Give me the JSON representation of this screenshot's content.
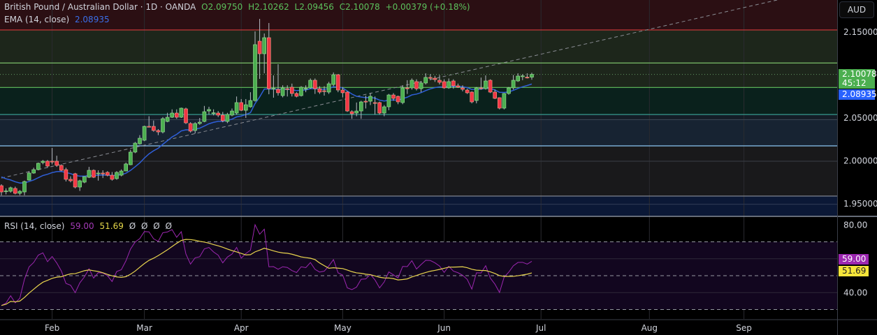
{
  "header": {
    "symbol": "British Pound / Australian Dollar · 1D · OANDA",
    "open": "O2.09750",
    "high": "H2.10262",
    "low": "L2.09456",
    "close": "C2.10078",
    "change": "+0.00379 (+0.18%)",
    "ema_label": "EMA (14, close)",
    "ema_value": "2.08935"
  },
  "rsi_header": {
    "label": "RSI (14, close)",
    "rsi_value": "59.00",
    "ma_value": "51.69",
    "extras": [
      "Ø",
      "Ø",
      "Ø",
      "Ø"
    ]
  },
  "price_axis": {
    "currency_button": "AUD",
    "last_price": "2.10078",
    "countdown": "45:12",
    "ema_tag": "2.08935",
    "rsi_tag": "59.00",
    "rsi_ma_tag": "51.69"
  },
  "colors": {
    "up": "#4caf50",
    "down": "#f23645",
    "ema": "#2f5fd8",
    "rsi": "#9c27b0",
    "rsi_ma": "#e8d44d",
    "last_price": "#4caf50",
    "ema_tag": "#2962ff"
  },
  "chart_data": [
    {
      "type": "candlestick",
      "symbol": "GBP/AUD",
      "timeframe": "1D",
      "ylim": [
        1.945,
        2.17
      ],
      "yticks": [
        "2.15000",
        "2.05000",
        "2.00000",
        "1.95000"
      ],
      "ytick_values": [
        2.15,
        2.05,
        2.0,
        1.95
      ],
      "xticks": [
        {
          "label": "Feb",
          "bar": 11
        },
        {
          "label": "Mar",
          "bar": 31
        },
        {
          "label": "Apr",
          "bar": 52
        },
        {
          "label": "May",
          "bar": 74
        },
        {
          "label": "Jun",
          "bar": 96
        },
        {
          "label": "Jul",
          "bar": 117
        },
        {
          "label": "Aug",
          "bar": 140.5
        },
        {
          "label": "Sep",
          "bar": 161
        }
      ],
      "ema_period": 14,
      "levels": [
        {
          "price": 2.1525,
          "color": "#d23b3b"
        },
        {
          "price": 2.114,
          "color": "#7cc06a"
        },
        {
          "price": 2.10078,
          "color": "#5a8a5a",
          "dotted": true
        },
        {
          "price": 2.0855,
          "color": "#62c05e"
        },
        {
          "price": 2.054,
          "color": "#3aa89a"
        },
        {
          "price": 2.048,
          "color": "#3a4652"
        },
        {
          "price": 2.0175,
          "color": "#8cc6f2"
        },
        {
          "price": 1.9996,
          "color": "#34383f"
        },
        {
          "price": 1.959,
          "color": "#8a8f99"
        },
        {
          "price": 1.9495,
          "color": "#2a3550"
        }
      ],
      "bands": [
        {
          "from": 2.1525,
          "to": 2.3,
          "color": "#2b0f13"
        },
        {
          "from": 2.0855,
          "to": 2.1525,
          "color": "#1d261b"
        },
        {
          "from": 2.054,
          "to": 2.0855,
          "color": "#0a211c"
        },
        {
          "from": 2.0175,
          "to": 2.048,
          "color": "#172332"
        },
        {
          "from": 2.048,
          "to": 2.054,
          "color": "#141d27"
        },
        {
          "from": 1.959,
          "to": 2.0175,
          "color": "#19191b"
        },
        {
          "from": 1.9,
          "to": 1.959,
          "color": "#0b1836"
        }
      ],
      "trendline": {
        "points": [
          [
            0,
            1.98
          ],
          [
            60,
            2.054
          ]
        ],
        "style": "dashed"
      },
      "ohlc": [
        [
          1.9711,
          1.9728,
          1.9598,
          1.9638
        ],
        [
          1.9646,
          1.968,
          1.961,
          1.965
        ],
        [
          1.9646,
          1.97,
          1.963,
          1.9687
        ],
        [
          1.9679,
          1.97,
          1.961,
          1.9622
        ],
        [
          1.9622,
          1.966,
          1.96,
          1.9646
        ],
        [
          1.9638,
          1.977,
          1.96,
          1.976
        ],
        [
          1.9776,
          1.988,
          1.977,
          1.9858
        ],
        [
          1.9858,
          1.992,
          1.985,
          1.9898
        ],
        [
          1.9898,
          1.998,
          1.989,
          1.9972
        ],
        [
          1.998,
          2.001,
          1.996,
          1.9996
        ],
        [
          1.9996,
          2.001,
          1.992,
          1.9939
        ],
        [
          1.9996,
          2.015,
          1.996,
          1.999
        ],
        [
          1.9996,
          2.006,
          1.993,
          1.9947
        ],
        [
          1.9947,
          1.996,
          1.988,
          1.989
        ],
        [
          1.9898,
          1.992,
          1.976,
          1.9785
        ],
        [
          1.9785,
          1.982,
          1.975,
          1.9768
        ],
        [
          1.985,
          1.986,
          1.968,
          1.9695
        ],
        [
          1.9695,
          1.978,
          1.965,
          1.9768
        ],
        [
          1.9752,
          1.982,
          1.974,
          1.9817
        ],
        [
          1.9809,
          1.993,
          1.98,
          1.989
        ],
        [
          1.989,
          1.99,
          1.98,
          1.9809
        ],
        [
          1.985,
          1.989,
          1.977,
          1.9858
        ],
        [
          1.9858,
          1.989,
          1.98,
          1.9855
        ],
        [
          1.9866,
          1.988,
          1.982,
          1.9833
        ],
        [
          1.9833,
          1.987,
          1.977,
          1.9785
        ],
        [
          1.9793,
          1.988,
          1.978,
          1.9866
        ],
        [
          1.9833,
          1.99,
          1.982,
          1.9882
        ],
        [
          1.9882,
          1.998,
          1.988,
          1.9964
        ],
        [
          1.9955,
          2.013,
          1.995,
          2.0102
        ],
        [
          2.0102,
          2.022,
          2.009,
          2.0207
        ],
        [
          2.0199,
          2.03,
          2.019,
          2.0264
        ],
        [
          2.024,
          2.041,
          2.023,
          2.0402
        ],
        [
          2.0402,
          2.052,
          2.039,
          2.04
        ],
        [
          2.0402,
          2.047,
          2.034,
          2.0354
        ],
        [
          2.0354,
          2.037,
          2.03,
          2.0337
        ],
        [
          2.0337,
          2.051,
          2.032,
          2.0492
        ],
        [
          2.0459,
          2.056,
          2.045,
          2.0508
        ],
        [
          2.0508,
          2.06,
          2.05,
          2.0557
        ],
        [
          2.0557,
          2.06,
          2.049,
          2.0508
        ],
        [
          2.0508,
          2.062,
          2.05,
          2.0614
        ],
        [
          2.0606,
          2.062,
          2.043,
          2.0443
        ],
        [
          2.0435,
          2.045,
          2.033,
          2.0346
        ],
        [
          2.0354,
          2.045,
          2.032,
          2.0435
        ],
        [
          2.0435,
          2.05,
          2.042,
          2.0451
        ],
        [
          2.0459,
          2.064,
          2.045,
          2.0573
        ],
        [
          2.0581,
          2.063,
          2.054,
          2.0598
        ],
        [
          2.0557,
          2.06,
          2.053,
          2.056
        ],
        [
          2.0557,
          2.058,
          2.051,
          2.0533
        ],
        [
          2.0533,
          2.057,
          2.045,
          2.0467
        ],
        [
          2.0459,
          2.056,
          2.044,
          2.0541
        ],
        [
          2.0533,
          2.061,
          2.052,
          2.0581
        ],
        [
          2.0557,
          2.075,
          2.054,
          2.0679
        ],
        [
          2.0679,
          2.072,
          2.058,
          2.0589
        ],
        [
          2.0589,
          2.072,
          2.05,
          2.0654
        ],
        [
          2.063,
          2.08,
          2.062,
          2.0703
        ],
        [
          2.0703,
          2.1508,
          2.069,
          2.1354
        ],
        [
          2.1394,
          2.1654,
          2.0955,
          2.1248
        ],
        [
          2.1248,
          2.1484,
          2.102,
          2.1435
        ],
        [
          2.1435,
          2.1606,
          2.0776,
          2.0841
        ],
        [
          2.0841,
          2.0996,
          2.0736,
          2.0845
        ],
        [
          2.0833,
          2.1126,
          2.076,
          2.0793
        ],
        [
          2.076,
          2.088,
          2.074,
          2.085
        ],
        [
          2.0841,
          2.088,
          2.075,
          2.0838
        ],
        [
          2.0858,
          2.09,
          2.075,
          2.0785
        ],
        [
          2.0785,
          2.08,
          2.074,
          2.0752
        ],
        [
          2.076,
          2.087,
          2.075,
          2.0858
        ],
        [
          2.0841,
          2.088,
          2.08,
          2.0845
        ],
        [
          2.085,
          2.096,
          2.084,
          2.0939
        ],
        [
          2.0939,
          2.096,
          2.078,
          2.0841
        ],
        [
          2.0841,
          2.087,
          2.078,
          2.0801
        ],
        [
          2.0817,
          2.087,
          2.076,
          2.0815
        ],
        [
          2.0801,
          2.092,
          2.078,
          2.0898
        ],
        [
          2.089,
          2.103,
          2.087,
          2.1004
        ],
        [
          2.1004,
          2.101,
          2.08,
          2.0825
        ],
        [
          2.0825,
          2.086,
          2.074,
          2.0793
        ],
        [
          2.0801,
          2.081,
          2.057,
          2.0581
        ],
        [
          2.0573,
          2.059,
          2.049,
          2.0549
        ],
        [
          2.0557,
          2.068,
          2.052,
          2.0581
        ],
        [
          2.0581,
          2.07,
          2.049,
          2.0687
        ],
        [
          2.0695,
          2.076,
          2.061,
          2.0692
        ],
        [
          2.0695,
          2.079,
          2.065,
          2.0752
        ],
        [
          2.0679,
          2.075,
          2.054,
          2.0677
        ],
        [
          2.0679,
          2.069,
          2.054,
          2.0557
        ],
        [
          2.0557,
          2.065,
          2.052,
          2.063
        ],
        [
          2.063,
          2.078,
          2.059,
          2.0768
        ],
        [
          2.0768,
          2.079,
          2.07,
          2.0728
        ],
        [
          2.0752,
          2.076,
          2.066,
          2.0687
        ],
        [
          2.0679,
          2.088,
          2.066,
          2.085
        ],
        [
          2.085,
          2.094,
          2.078,
          2.0848
        ],
        [
          2.085,
          2.096,
          2.083,
          2.0939
        ],
        [
          2.0923,
          2.095,
          2.082,
          2.0841
        ],
        [
          2.0841,
          2.093,
          2.08,
          2.0907
        ],
        [
          2.0907,
          2.102,
          2.089,
          2.0972
        ],
        [
          2.0972,
          2.101,
          2.094,
          2.097
        ],
        [
          2.0963,
          2.099,
          2.092,
          2.0947
        ],
        [
          2.0939,
          2.1,
          2.089,
          2.0915
        ],
        [
          2.0923,
          2.095,
          2.084,
          2.085
        ],
        [
          2.085,
          2.096,
          2.084,
          2.0923
        ],
        [
          2.0931,
          2.095,
          2.084,
          2.0874
        ],
        [
          2.0874,
          2.09,
          2.085,
          2.0858
        ],
        [
          2.085,
          2.088,
          2.081,
          2.0833
        ],
        [
          2.0825,
          2.084,
          2.078,
          2.0793
        ],
        [
          2.0801,
          2.081,
          2.067,
          2.0687
        ],
        [
          2.0703,
          2.086,
          2.067,
          2.085
        ],
        [
          2.085,
          2.097,
          2.083,
          2.0848
        ],
        [
          2.0841,
          2.0996,
          2.083,
          2.0931
        ],
        [
          2.0939,
          2.095,
          2.079,
          2.0801
        ],
        [
          2.0801,
          2.083,
          2.072,
          2.0728
        ],
        [
          2.0736,
          2.074,
          2.06,
          2.0614
        ],
        [
          2.0614,
          2.079,
          2.06,
          2.0785
        ],
        [
          2.0785,
          2.086,
          2.077,
          2.085
        ],
        [
          2.085,
          2.1,
          2.083,
          2.0939
        ],
        [
          2.0931,
          2.102,
          2.092,
          2.0988
        ],
        [
          2.0988,
          2.101,
          2.094,
          2.099
        ],
        [
          2.0975,
          2.102,
          2.096,
          2.0972
        ],
        [
          2.0975,
          2.10262,
          2.09456,
          2.10078
        ]
      ]
    },
    {
      "type": "line",
      "title": "RSI (14, close)",
      "ylim": [
        24,
        86
      ],
      "yticks": [
        "80.00",
        "40.00"
      ],
      "ytick_values": [
        80,
        40
      ],
      "bands": {
        "upper": 70,
        "middle": 50,
        "lower": 30
      },
      "series": [
        {
          "name": "RSI",
          "last": 59.0
        },
        {
          "name": "RSI-based MA",
          "last": 51.69
        }
      ]
    }
  ]
}
